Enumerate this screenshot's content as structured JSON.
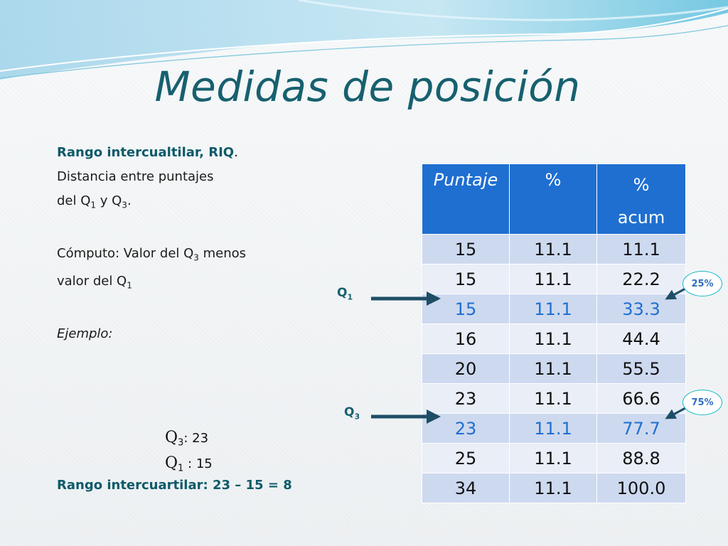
{
  "slide": {
    "title": "Medidas de posición",
    "definition_heading": "Rango intercualtilar, RIQ",
    "definition_period": ".",
    "definition_line2": "Distancia entre  puntajes",
    "definition_line3_pre": "del Q",
    "definition_line3_mid": " y Q",
    "definition_line3_post": ".",
    "computo_line1_pre": "Cómputo: Valor del Q",
    "computo_line1_post": " menos",
    "computo_line2_pre": "valor del Q",
    "ejemplo": "Ejemplo:",
    "sub1": "1",
    "sub3": "3",
    "q3_value": ": 23",
    "q1_value": " : 15",
    "rango_text": "Rango intercuartilar: 23 – 15 = 8"
  },
  "table": {
    "headers": [
      "Puntaje",
      "%",
      "% acum"
    ],
    "rows": [
      [
        "15",
        "11.1",
        "11.1"
      ],
      [
        "15",
        "11.1",
        "22.2"
      ],
      [
        "15",
        "11.1",
        "33.3"
      ],
      [
        "16",
        "11.1",
        "44.4"
      ],
      [
        "20",
        "11.1",
        "55.5"
      ],
      [
        "23",
        "11.1",
        "66.6"
      ],
      [
        "23",
        "11.1",
        "77.7"
      ],
      [
        "25",
        "11.1",
        "88.8"
      ],
      [
        "34",
        "11.1",
        "100.0"
      ]
    ],
    "highlight_rows": [
      2,
      6
    ]
  },
  "annotations": {
    "q1_label": "Q",
    "q3_label": "Q",
    "badge_25": "25%",
    "badge_75": "75%"
  },
  "colors": {
    "title": "#17606f",
    "header_bg": "#1f6fd1",
    "row_dark": "#cdd9ef",
    "row_light": "#e9eef7",
    "arrow": "#1e4e66",
    "badge_border": "#14b8c4"
  }
}
